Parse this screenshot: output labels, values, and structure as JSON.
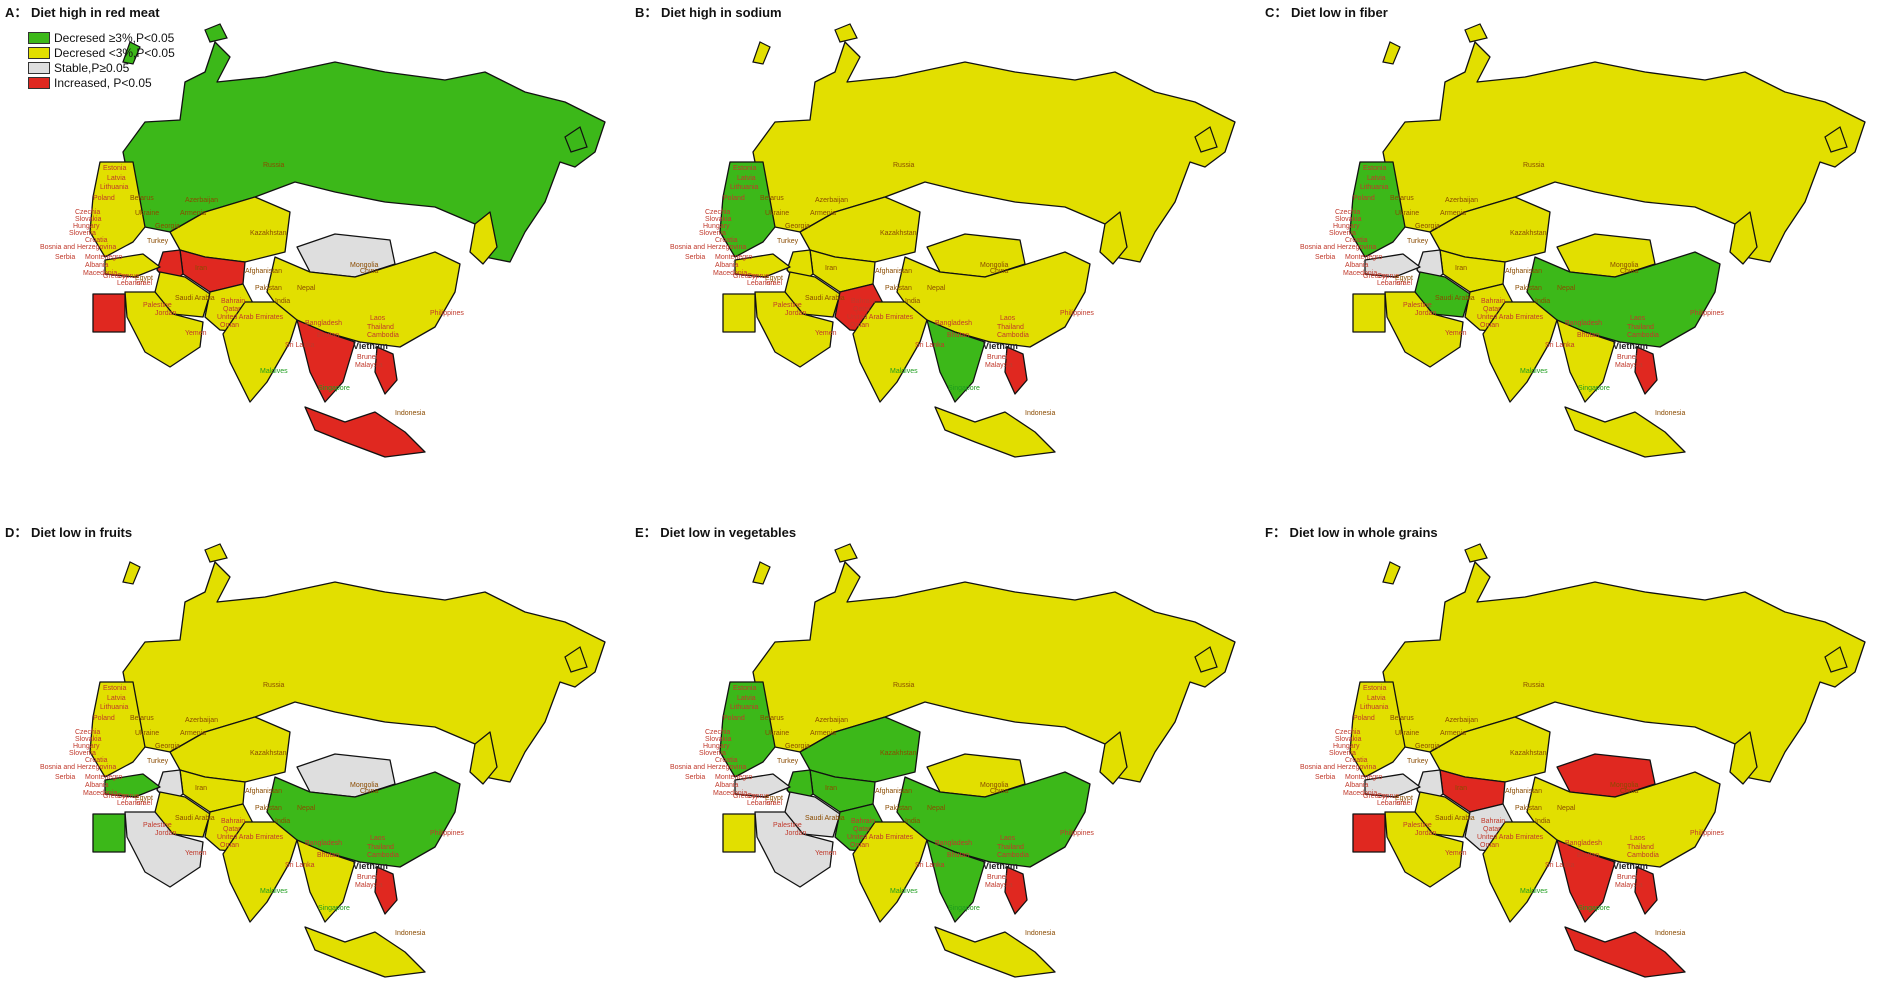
{
  "legend": [
    {
      "label": "Decresed ≥3%,P<0.05",
      "color": "#3cb819"
    },
    {
      "label": "Decresed <3%,P<0.05",
      "color": "#e2df00"
    },
    {
      "label": "Stable,P≥0.05",
      "color": "#dedede"
    },
    {
      "label": "Increased, P<0.05",
      "color": "#e02820"
    }
  ],
  "colors": {
    "decreased_3": "#3cb819",
    "decreased_lt3": "#e2df00",
    "stable": "#dedede",
    "increased": "#e02820"
  },
  "panels": [
    {
      "title": "A： Diet high in red meat",
      "regions": {
        "russia": "decreased_3",
        "china": "decreased_lt3",
        "mongolia": "stable",
        "kazakh": "decreased_lt3",
        "stans": "increased",
        "caspian": "increased",
        "india": "decreased_lt3",
        "pakistan": "decreased_lt3",
        "iran": "decreased_lt3",
        "arabia": "decreased_lt3",
        "egypt": "increased",
        "turkey": "decreased_lt3",
        "europe": "decreased_lt3",
        "indochina": "increased",
        "indonesia": "increased",
        "philippines": "increased",
        "japan": "decreased_lt3"
      }
    },
    {
      "title": "B： Diet high in sodium",
      "regions": {
        "russia": "decreased_lt3",
        "china": "decreased_lt3",
        "mongolia": "decreased_lt3",
        "kazakh": "decreased_lt3",
        "stans": "decreased_lt3",
        "caspian": "decreased_lt3",
        "india": "decreased_lt3",
        "pakistan": "increased",
        "iran": "decreased_lt3",
        "arabia": "decreased_lt3",
        "egypt": "decreased_lt3",
        "turkey": "decreased_lt3",
        "europe": "decreased_3",
        "indochina": "decreased_3",
        "indonesia": "decreased_lt3",
        "philippines": "increased",
        "japan": "decreased_lt3"
      }
    },
    {
      "title": "C： Diet low in fiber",
      "regions": {
        "russia": "decreased_lt3",
        "china": "decreased_3",
        "mongolia": "decreased_lt3",
        "kazakh": "decreased_lt3",
        "stans": "decreased_lt3",
        "caspian": "stable",
        "india": "decreased_lt3",
        "pakistan": "decreased_lt3",
        "iran": "decreased_3",
        "arabia": "decreased_lt3",
        "egypt": "decreased_lt3",
        "turkey": "stable",
        "europe": "decreased_3",
        "indochina": "decreased_lt3",
        "indonesia": "decreased_lt3",
        "philippines": "increased",
        "japan": "decreased_lt3"
      }
    },
    {
      "title": "D： Diet low in fruits",
      "regions": {
        "russia": "decreased_lt3",
        "china": "decreased_3",
        "mongolia": "stable",
        "kazakh": "decreased_lt3",
        "stans": "decreased_lt3",
        "caspian": "stable",
        "india": "decreased_lt3",
        "pakistan": "decreased_lt3",
        "iran": "decreased_lt3",
        "arabia": "stable",
        "egypt": "decreased_3",
        "turkey": "decreased_3",
        "europe": "decreased_lt3",
        "indochina": "decreased_lt3",
        "indonesia": "decreased_lt3",
        "philippines": "increased",
        "japan": "decreased_lt3"
      }
    },
    {
      "title": "E： Diet low in vegetables",
      "regions": {
        "russia": "decreased_lt3",
        "china": "decreased_3",
        "mongolia": "decreased_lt3",
        "kazakh": "decreased_3",
        "stans": "decreased_3",
        "caspian": "decreased_3",
        "india": "decreased_lt3",
        "pakistan": "decreased_3",
        "iran": "stable",
        "arabia": "stable",
        "egypt": "decreased_lt3",
        "turkey": "stable",
        "europe": "decreased_3",
        "indochina": "decreased_3",
        "indonesia": "decreased_lt3",
        "philippines": "increased",
        "japan": "decreased_lt3"
      }
    },
    {
      "title": "F： Diet low in whole grains",
      "regions": {
        "russia": "decreased_lt3",
        "china": "decreased_lt3",
        "mongolia": "increased",
        "kazakh": "decreased_lt3",
        "stans": "increased",
        "caspian": "stable",
        "india": "decreased_lt3",
        "pakistan": "stable",
        "iran": "decreased_lt3",
        "arabia": "decreased_lt3",
        "egypt": "increased",
        "turkey": "stable",
        "europe": "decreased_lt3",
        "indochina": "increased",
        "indonesia": "increased",
        "philippines": "increased",
        "japan": "decreased_lt3"
      }
    }
  ],
  "country_labels": {
    "russia": "Russia",
    "mongolia": "Mongolia",
    "china": "China",
    "kazakhstan": "Kazakhstan",
    "azerbaijan": "Azerbaijan",
    "armenia": "Armenia",
    "georgia": "Georgia",
    "turkey": "Turkey",
    "iran": "Iran",
    "afghanistan": "Afghanistan",
    "pakistan": "Pakistan",
    "india": "India",
    "nepal": "Nepal",
    "bangladesh": "Bangladesh",
    "bhutan": "Bhutan",
    "sri_lanka": "Sri Lanka",
    "maldives": "Maldives",
    "laos": "Laos",
    "thailand": "Thailand",
    "cambodia": "Cambodia",
    "vietnam": "Vietnam",
    "brunei": "Brunei",
    "malaysia": "Malaysia",
    "singapore": "Singapore",
    "philippines": "Philippines",
    "indonesia": "Indonesia",
    "estonia": "Estonia",
    "latvia": "Latvia",
    "lithuania": "Lithuania",
    "poland": "Poland",
    "belarus": "Belarus",
    "ukraine": "Ukraine",
    "czechia": "Czechia",
    "slovakia": "Slovakia",
    "hungary": "Hungary",
    "slovenia": "Slovenia",
    "croatia": "Croatia",
    "bosnia": "Bosnia and Herzegovina",
    "serbia": "Serbia",
    "montenegro": "Montenegro",
    "albania": "Albania",
    "macedonia": "Macedonia",
    "greece": "Greece",
    "cyprus": "Cyprus",
    "lebanon": "Lebanon",
    "israel": "Israel",
    "palestine": "Palestine",
    "jordan": "Jordan",
    "egypt": "Egypt",
    "saudi_arabia": "Saudi Arabia",
    "bahrain": "Bahrain",
    "qatar": "Qatar",
    "uae": "United Arab Emirates",
    "oman": "Oman",
    "yemen": "Yemen"
  }
}
